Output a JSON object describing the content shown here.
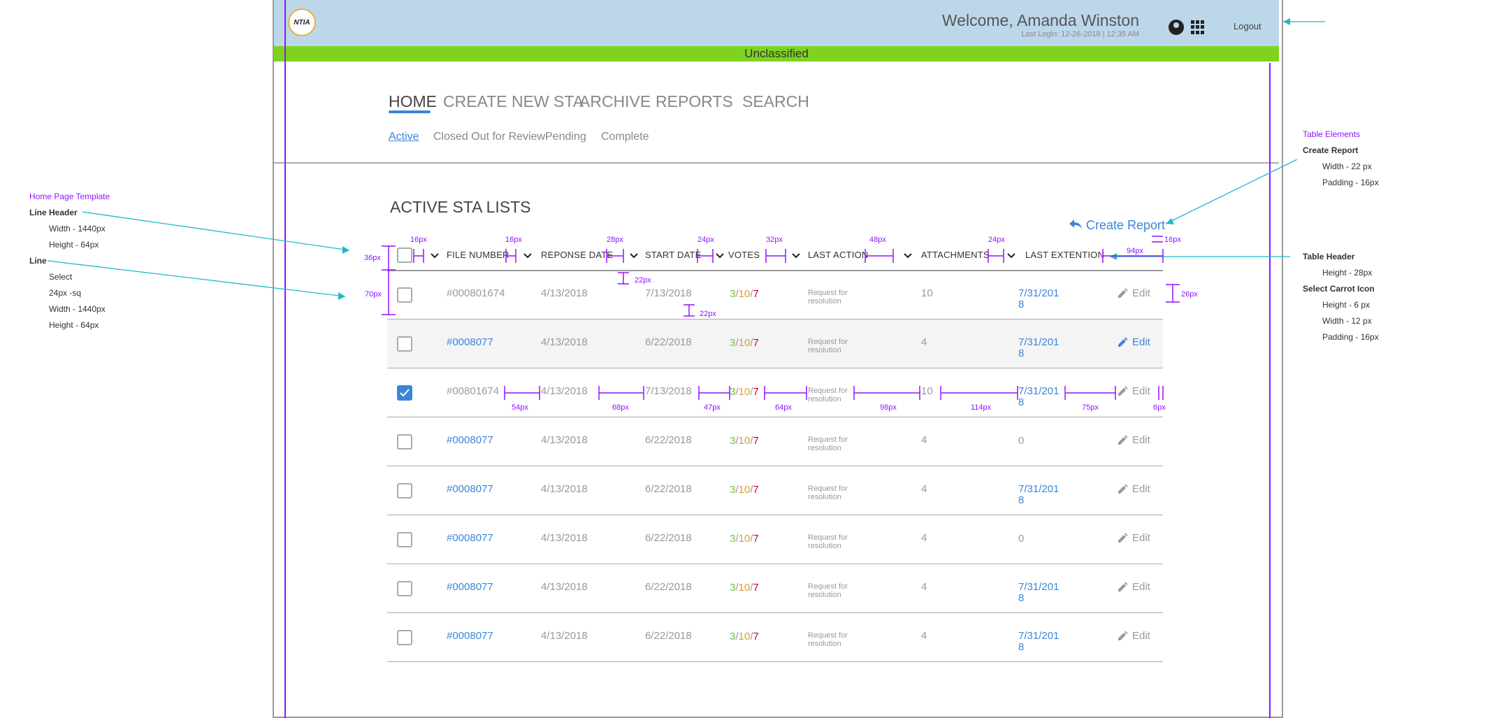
{
  "header": {
    "logo_text": "NTIA",
    "welcome": "Welcome, Amanda Winston",
    "last_login": "Last Login: 12-26-2018  |  12:35 AM",
    "logout": "Logout",
    "classification": "Unclassified",
    "classification_color": "#7ed321",
    "header_bg": "#bdd7ea"
  },
  "nav": {
    "items": [
      "HOME",
      "CREATE NEW STA",
      "ARCHIVE",
      "REPORTS",
      "SEARCH"
    ],
    "active_index": 0
  },
  "subnav": {
    "items": [
      "Active",
      "Closed Out for Review",
      "Pending",
      "Complete"
    ],
    "active_index": 0
  },
  "section_title": "ACTIVE STA LISTS",
  "create_report": "Create Report",
  "table": {
    "columns": [
      "FILE NUMBER",
      "REPONSE DATE",
      "START DATE",
      "VOTES",
      "LAST ACTION",
      "ATTACHMENTS",
      "LAST EXTENTION"
    ],
    "rows": [
      {
        "file": "#000801674",
        "file_link": false,
        "response": "4/13/2018",
        "start": "7/13/2018",
        "v1": "3",
        "v2": "10",
        "v3": "7",
        "action": "Request for resolution",
        "attachments": "10",
        "extension": "7/31/2018",
        "ext_link": true,
        "edit": "Edit",
        "edit_blue": false,
        "checked": false,
        "shaded": false
      },
      {
        "file": "#0008077",
        "file_link": true,
        "response": "4/13/2018",
        "start": "6/22/2018",
        "v1": "3",
        "v2": "10",
        "v3": "7",
        "action": "Request for resolution",
        "attachments": "4",
        "extension": "7/31/2018",
        "ext_link": true,
        "edit": "Edit",
        "edit_blue": true,
        "checked": false,
        "shaded": true
      },
      {
        "file": "#00801674",
        "file_link": false,
        "response": "4/13/2018",
        "start": "7/13/2018",
        "v1": "3",
        "v2": "10",
        "v3": "7",
        "action": "Request for resolution",
        "attachments": "10",
        "extension": "7/31/2018",
        "ext_link": true,
        "edit": "Edit",
        "edit_blue": false,
        "checked": true,
        "shaded": false
      },
      {
        "file": "#0008077",
        "file_link": true,
        "response": "4/13/2018",
        "start": "6/22/2018",
        "v1": "3",
        "v2": "10",
        "v3": "7",
        "action": "Request for resolution",
        "attachments": "4",
        "extension": "0",
        "ext_link": false,
        "edit": "Edit",
        "edit_blue": false,
        "checked": false,
        "shaded": false
      },
      {
        "file": "#0008077",
        "file_link": true,
        "response": "4/13/2018",
        "start": "6/22/2018",
        "v1": "3",
        "v2": "10",
        "v3": "7",
        "action": "Request for resolution",
        "attachments": "4",
        "extension": "7/31/2018",
        "ext_link": true,
        "edit": "Edit",
        "edit_blue": false,
        "checked": false,
        "shaded": false
      },
      {
        "file": "#0008077",
        "file_link": true,
        "response": "4/13/2018",
        "start": "6/22/2018",
        "v1": "3",
        "v2": "10",
        "v3": "7",
        "action": "Request for resolution",
        "attachments": "4",
        "extension": "0",
        "ext_link": false,
        "edit": "Edit",
        "edit_blue": false,
        "checked": false,
        "shaded": false
      },
      {
        "file": "#0008077",
        "file_link": true,
        "response": "4/13/2018",
        "start": "6/22/2018",
        "v1": "3",
        "v2": "10",
        "v3": "7",
        "action": "Request for resolution",
        "attachments": "4",
        "extension": "7/31/2018",
        "ext_link": true,
        "edit": "Edit",
        "edit_blue": false,
        "checked": false,
        "shaded": false
      },
      {
        "file": "#0008077",
        "file_link": true,
        "response": "4/13/2018",
        "start": "6/22/2018",
        "v1": "3",
        "v2": "10",
        "v3": "7",
        "action": "Request for resolution",
        "attachments": "4",
        "extension": "7/31/2018",
        "ext_link": true,
        "edit": "Edit",
        "edit_blue": false,
        "checked": false,
        "shaded": false
      }
    ]
  },
  "annotations": {
    "left": {
      "title": "Home Page Template",
      "line_header": "Line Header",
      "lh_width": "Width - 1440px",
      "lh_height": "Height - 64px",
      "line": "Line",
      "select": "Select",
      "sq": "24px -sq",
      "l_width": "Width - 1440px",
      "l_height": "Height - 64px"
    },
    "right": {
      "title": "Table Elements",
      "create_report": "Create Report",
      "cr_width": "Width - 22 px",
      "cr_padding": "Padding - 16px",
      "table_header": "Table Header",
      "th_height": "Height - 28px",
      "carrot": "Select Carrot Icon",
      "ci_height": "Height - 6 px",
      "ci_width": "Width - 12 px",
      "ci_padding": "Padding - 16px"
    },
    "dims": {
      "d36": "36px",
      "d70": "70px",
      "d16a": "16px",
      "d16b": "16px",
      "d28": "28px",
      "d24a": "24px",
      "d32": "32px",
      "d48": "48px",
      "d24b": "24px",
      "d16c": "16px",
      "d94": "94px",
      "d26": "26px",
      "d22a": "22px",
      "d22b": "22px",
      "d54": "54px",
      "d68": "68px",
      "d47": "47px",
      "d64": "64px",
      "d98": "98px",
      "d114": "114px",
      "d75": "75px",
      "d6": "6px"
    }
  }
}
